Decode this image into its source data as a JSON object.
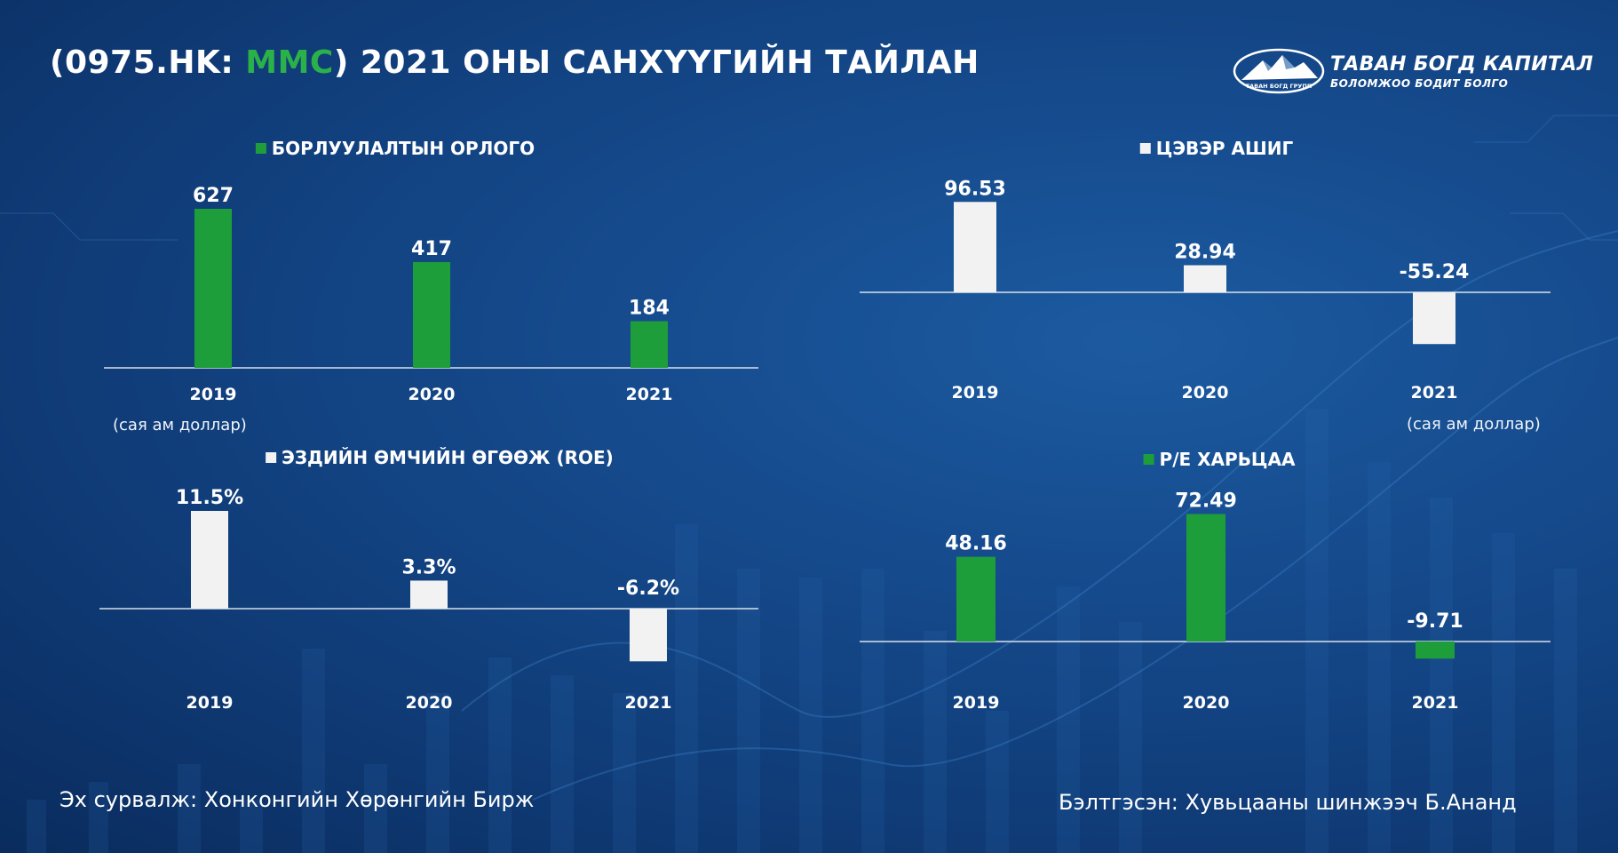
{
  "header": {
    "title_prefix": "(0975.HK: ",
    "title_ticker": "MMC",
    "title_suffix": ") 2021 ОНЫ САНХҮҮГИЙН ТАЙЛАН"
  },
  "logo": {
    "brand": "ТАВАН БОГД КАПИТАЛ",
    "slogan": "БОЛОМЖОО БОДИТ БОЛГО",
    "emblem_text": "ТАВАН БОГД ГРУПП"
  },
  "colors": {
    "green": "#1e9e3a",
    "white_bar": "#f2f2f2",
    "ticker": "#2bb14a",
    "background": "#154a8c"
  },
  "units": {
    "left": "(сая ам доллар)",
    "right": "(сая ам доллар)"
  },
  "footer": {
    "source": "Эх сурвалж: Хонконгийн Хөрөнгийн Бирж",
    "prepared_by": "Бэлтгэсэн: Хувьцааны шинжээч Б.Ананд"
  },
  "chart_data": [
    {
      "type": "bar",
      "title": "БОРЛУУЛАЛТЫН ОРЛОГО",
      "color": "#1e9e3a",
      "categories": [
        "2019",
        "2020",
        "2021"
      ],
      "values": [
        627,
        417,
        184
      ],
      "labels": [
        "627",
        "417",
        "184"
      ]
    },
    {
      "type": "bar",
      "title": "ЦЭВЭР АШИГ",
      "color": "#f2f2f2",
      "categories": [
        "2019",
        "2020",
        "2021"
      ],
      "values": [
        96.53,
        28.94,
        -55.24
      ],
      "labels": [
        "96.53",
        "28.94",
        "-55.24"
      ]
    },
    {
      "type": "bar",
      "title": "ЭЗДИЙН ӨМЧИЙН ӨГӨӨЖ (ROE)",
      "color": "#f2f2f2",
      "categories": [
        "2019",
        "2020",
        "2021"
      ],
      "values": [
        11.5,
        3.3,
        -6.2
      ],
      "labels": [
        "11.5%",
        "3.3%",
        "-6.2%"
      ]
    },
    {
      "type": "bar",
      "title": "P/E ХАРЬЦАА",
      "color": "#1e9e3a",
      "categories": [
        "2019",
        "2020",
        "2021"
      ],
      "values": [
        48.16,
        72.49,
        -9.71
      ],
      "labels": [
        "48.16",
        "72.49",
        "-9.71"
      ]
    }
  ]
}
